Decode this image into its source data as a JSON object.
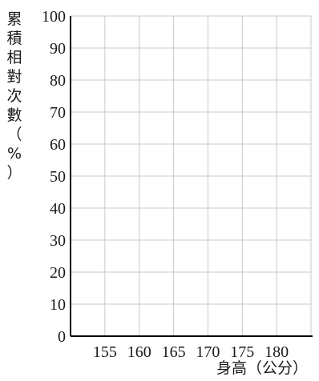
{
  "chart_data": {
    "type": "line",
    "title": "",
    "xlabel": "身高（公分）",
    "ylabel": "累積相對次數（%）",
    "xlim": [
      150,
      185
    ],
    "ylim": [
      0,
      100
    ],
    "x_ticks": [
      155,
      160,
      165,
      170,
      175,
      180
    ],
    "y_ticks": [
      0,
      10,
      20,
      30,
      40,
      50,
      60,
      70,
      80,
      90,
      100
    ],
    "x_tick_labels": [
      "155",
      "160",
      "165",
      "170",
      "175",
      "180"
    ],
    "y_tick_labels": [
      "0",
      "10",
      "20",
      "30",
      "40",
      "50",
      "60",
      "70",
      "80",
      "90",
      "100"
    ],
    "grid": true,
    "series": []
  },
  "colors": {
    "grid": "#c8c8c8",
    "axis": "#000000",
    "text": "#1a1a1a"
  }
}
